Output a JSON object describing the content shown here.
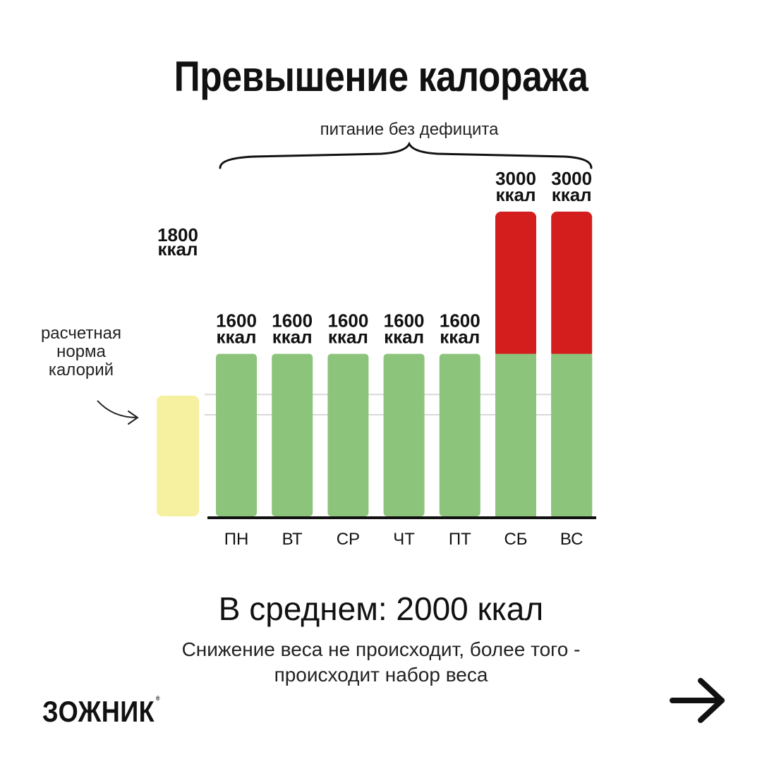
{
  "title": "Превышение калоража",
  "brace_label": "питание без дефицита",
  "norm_label": [
    "расчетная",
    "норма",
    "калорий"
  ],
  "average": "В среднем: 2000 ккал",
  "note": [
    "Снижение веса не происходит, более того -",
    "происходит набор веса"
  ],
  "brand": "ЗОЖНИК",
  "brand_mark": "®",
  "next_icon": "arrow-right-icon",
  "colors": {
    "norm": "#f6f1a0",
    "base": "#8cc47c",
    "excess": "#d41e1e"
  },
  "chart_data": {
    "type": "bar",
    "unit": "ккал",
    "norm": {
      "value": 1800,
      "value_label": "1800",
      "unit_label": "ккал"
    },
    "categories": [
      "ПН",
      "ВТ",
      "СР",
      "ЧТ",
      "ПТ",
      "СБ",
      "ВС"
    ],
    "values": [
      1600,
      1600,
      1600,
      1600,
      1600,
      3000,
      3000
    ],
    "value_labels": [
      "1600",
      "1600",
      "1600",
      "1600",
      "1600",
      "3000",
      "3000"
    ],
    "series": [
      {
        "values": [
          1600,
          1600,
          1600,
          1600,
          1600,
          1600,
          1600
        ]
      },
      {
        "values": [
          0,
          0,
          0,
          0,
          0,
          1400,
          1400
        ]
      }
    ],
    "ylim": [
      0,
      3000
    ]
  }
}
